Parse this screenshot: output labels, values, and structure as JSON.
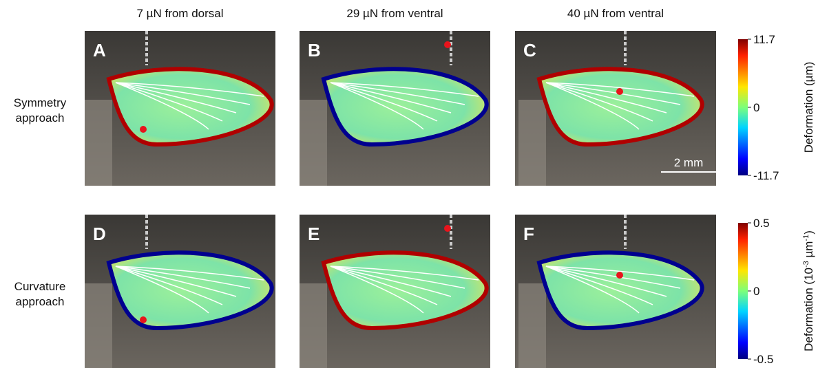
{
  "columns": [
    "7 µN from dorsal",
    "29 µN from ventral",
    "40 µN from ventral"
  ],
  "rows": [
    {
      "label": [
        "Symmetry",
        "approach"
      ],
      "panels": [
        "A",
        "B",
        "C"
      ],
      "colorbar": {
        "label_parts": [
          "Deformation (µm)"
        ],
        "lim": [
          -11.7,
          11.7
        ],
        "ticks": [
          11.7,
          0,
          -11.7
        ]
      }
    },
    {
      "label": [
        "Curvature",
        "approach"
      ],
      "panels": [
        "D",
        "E",
        "F"
      ],
      "colorbar": {
        "label_parts": [
          "Deformation (10",
          "-3",
          " µm",
          "-1",
          ")"
        ],
        "lim": [
          -0.5,
          0.5
        ],
        "ticks": [
          0.5,
          0,
          -0.5
        ]
      }
    }
  ],
  "scale_bar": "2 mm"
}
